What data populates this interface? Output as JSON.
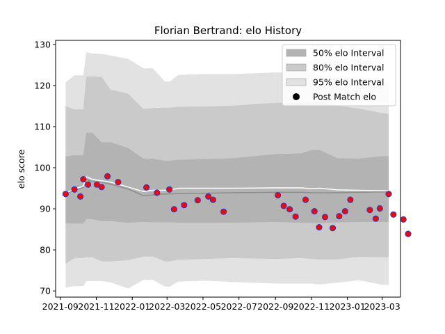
{
  "chart_data": {
    "type": "area",
    "title": "Florian Bertrand: elo History",
    "xlabel": "",
    "ylabel": "elo score",
    "xlim": [
      "2021-08-24",
      "2023-04-01"
    ],
    "ylim": [
      68.5,
      131
    ],
    "x_ticks": [
      {
        "date": "2021-09-01",
        "label": "2021-09"
      },
      {
        "date": "2021-11-01",
        "label": "2021-11"
      },
      {
        "date": "2022-01-01",
        "label": "2022-01"
      },
      {
        "date": "2022-03-01",
        "label": "2022-03"
      },
      {
        "date": "2022-05-01",
        "label": "2022-05"
      },
      {
        "date": "2022-07-01",
        "label": "2022-07"
      },
      {
        "date": "2022-09-01",
        "label": "2022-09"
      },
      {
        "date": "2022-11-01",
        "label": "2022-11"
      },
      {
        "date": "2023-01-01",
        "label": "2023-01"
      },
      {
        "date": "2023-03-01",
        "label": "2023-03"
      }
    ],
    "y_ticks": [
      70,
      80,
      90,
      100,
      110,
      120,
      130
    ],
    "legend_position": "top-right",
    "legend": [
      {
        "label": "50% elo Interval",
        "kind": "patch",
        "color": "#b3b3b3"
      },
      {
        "label": "80% elo Interval",
        "kind": "patch",
        "color": "#cacaca"
      },
      {
        "label": "95% elo Interval",
        "kind": "patch",
        "color": "#e2e2e2"
      },
      {
        "label": "Post Match elo",
        "kind": "marker",
        "color": "#000000"
      }
    ],
    "colors": {
      "band50": "#b3b3b3",
      "band80": "#cacaca",
      "band95": "#e2e2e2",
      "mean_line": "#8c8c8c",
      "white_line": "#ffffff",
      "marker_fill": "#ff0000",
      "marker_edge": "#3a3ab8"
    },
    "bands": {
      "x": [
        "2021-09-10",
        "2021-09-25",
        "2021-10-10",
        "2021-10-15",
        "2021-10-25",
        "2021-11-10",
        "2021-11-25",
        "2021-12-25",
        "2022-01-20",
        "2022-02-05",
        "2022-02-25",
        "2022-03-05",
        "2022-03-20",
        "2022-05-05",
        "2022-06-20",
        "2022-09-01",
        "2022-10-15",
        "2022-11-01",
        "2022-11-15",
        "2022-12-15",
        "2023-01-20",
        "2023-03-01",
        "2023-03-12"
      ],
      "b95": [
        [
          70.8,
          120.8
        ],
        [
          71.2,
          122.5
        ],
        [
          71.2,
          122.5
        ],
        [
          72.4,
          128.1
        ],
        [
          72.4,
          127.8
        ],
        [
          72.4,
          127.7
        ],
        [
          72.1,
          127.3
        ],
        [
          70.6,
          126.5
        ],
        [
          72.7,
          124.2
        ],
        [
          72.7,
          124.2
        ],
        [
          71.1,
          121.0
        ],
        [
          71.0,
          120.9
        ],
        [
          72.3,
          122.6
        ],
        [
          72.5,
          122.8
        ],
        [
          72.2,
          122.8
        ],
        [
          71.8,
          123.2
        ],
        [
          71.8,
          123.2
        ],
        [
          71.8,
          123.2
        ],
        [
          71.6,
          122.5
        ],
        [
          72.0,
          122.3
        ],
        [
          72.6,
          122.0
        ],
        [
          71.5,
          120.8
        ],
        [
          71.5,
          120.8
        ]
      ],
      "b80": [
        [
          76.6,
          115.0
        ],
        [
          78.0,
          114.2
        ],
        [
          78.0,
          114.2
        ],
        [
          78.2,
          122.2
        ],
        [
          78.2,
          122.2
        ],
        [
          77.2,
          122.1
        ],
        [
          77.2,
          119.0
        ],
        [
          77.5,
          118.0
        ],
        [
          78.4,
          114.3
        ],
        [
          78.4,
          114.5
        ],
        [
          77.2,
          114.6
        ],
        [
          77.2,
          114.6
        ],
        [
          77.6,
          114.8
        ],
        [
          77.8,
          114.9
        ],
        [
          78.0,
          115.1
        ],
        [
          77.8,
          115.8
        ],
        [
          78.0,
          115.9
        ],
        [
          77.8,
          116.1
        ],
        [
          77.7,
          116.1
        ],
        [
          77.7,
          115.1
        ],
        [
          78.3,
          114.4
        ],
        [
          78.2,
          113.3
        ],
        [
          78.2,
          113.1
        ]
      ],
      "b50": [
        [
          86.5,
          102.8
        ],
        [
          86.4,
          103.0
        ],
        [
          86.4,
          103.0
        ],
        [
          87.5,
          108.5
        ],
        [
          87.5,
          108.5
        ],
        [
          87.0,
          106.2
        ],
        [
          87.0,
          106.2
        ],
        [
          86.6,
          104.8
        ],
        [
          86.8,
          102.2
        ],
        [
          86.7,
          102.2
        ],
        [
          86.7,
          101.7
        ],
        [
          86.7,
          101.7
        ],
        [
          86.6,
          101.9
        ],
        [
          86.6,
          102.1
        ],
        [
          86.6,
          102.3
        ],
        [
          86.8,
          103.3
        ],
        [
          86.6,
          103.5
        ],
        [
          86.6,
          104.3
        ],
        [
          86.5,
          104.3
        ],
        [
          86.7,
          102.3
        ],
        [
          86.8,
          102.2
        ],
        [
          86.8,
          102.8
        ],
        [
          86.8,
          102.8
        ]
      ],
      "mean": [
        93.6,
        94.5,
        95.2,
        97.2,
        96.6,
        96.5,
        96.0,
        94.8,
        93.2,
        93.4,
        93.6,
        93.6,
        93.7,
        93.8,
        93.9,
        94.0,
        94.0,
        93.9,
        93.9,
        93.9,
        94.0,
        94.1,
        94.1
      ],
      "white": [
        93.8,
        94.8,
        95.5,
        97.8,
        97.2,
        96.8,
        96.5,
        95.3,
        94.2,
        94.5,
        94.5,
        94.5,
        95.0,
        95.0,
        95.0,
        95.1,
        95.1,
        94.9,
        95.0,
        94.6,
        94.5,
        94.4,
        94.4
      ]
    },
    "points": [
      {
        "x": "2021-09-10",
        "y": 93.6
      },
      {
        "x": "2021-09-25",
        "y": 94.7
      },
      {
        "x": "2021-10-05",
        "y": 93.0
      },
      {
        "x": "2021-10-10",
        "y": 97.2
      },
      {
        "x": "2021-10-18",
        "y": 95.9
      },
      {
        "x": "2021-11-02",
        "y": 95.9
      },
      {
        "x": "2021-11-10",
        "y": 95.3
      },
      {
        "x": "2021-11-20",
        "y": 97.9
      },
      {
        "x": "2021-12-08",
        "y": 96.5
      },
      {
        "x": "2022-01-25",
        "y": 95.2
      },
      {
        "x": "2022-02-12",
        "y": 93.9
      },
      {
        "x": "2022-03-05",
        "y": 94.7
      },
      {
        "x": "2022-03-13",
        "y": 89.9
      },
      {
        "x": "2022-03-30",
        "y": 90.9
      },
      {
        "x": "2022-04-22",
        "y": 92.1
      },
      {
        "x": "2022-05-10",
        "y": 93.0
      },
      {
        "x": "2022-05-18",
        "y": 92.2
      },
      {
        "x": "2022-06-05",
        "y": 89.3
      },
      {
        "x": "2022-09-05",
        "y": 93.3
      },
      {
        "x": "2022-09-15",
        "y": 90.7
      },
      {
        "x": "2022-09-25",
        "y": 89.9
      },
      {
        "x": "2022-10-05",
        "y": 88.1
      },
      {
        "x": "2022-10-22",
        "y": 92.2
      },
      {
        "x": "2022-11-06",
        "y": 89.4
      },
      {
        "x": "2022-11-14",
        "y": 85.5
      },
      {
        "x": "2022-11-24",
        "y": 88.0
      },
      {
        "x": "2022-12-07",
        "y": 85.3
      },
      {
        "x": "2022-12-18",
        "y": 88.2
      },
      {
        "x": "2022-12-28",
        "y": 89.4
      },
      {
        "x": "2023-01-06",
        "y": 92.2
      },
      {
        "x": "2023-02-08",
        "y": 89.7
      },
      {
        "x": "2023-02-18",
        "y": 87.6
      },
      {
        "x": "2023-02-25",
        "y": 90.1
      },
      {
        "x": "2023-03-12",
        "y": 93.6
      },
      {
        "x": "2023-03-20",
        "y": 88.6
      },
      {
        "x": "2023-04-06",
        "y": 87.4
      },
      {
        "x": "2023-04-14",
        "y": 83.9
      }
    ]
  }
}
